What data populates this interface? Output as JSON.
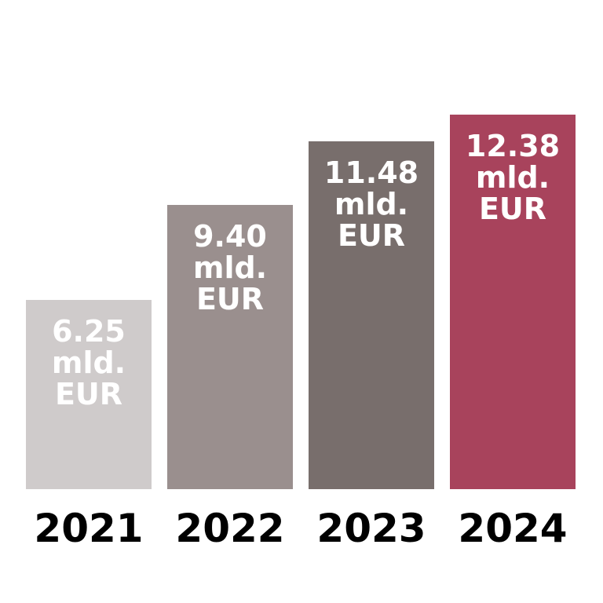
{
  "chart_data": {
    "type": "bar",
    "categories": [
      "2021",
      "2022",
      "2023",
      "2024"
    ],
    "series": [
      {
        "values": [
          6.25,
          9.4,
          11.48,
          12.38
        ],
        "value_labels": [
          "6.25 mld. EUR",
          "9.40 mld. EUR",
          "11.48 mld. EUR",
          "12.38 mld. EUR"
        ],
        "colors": [
          "#cfcbcb",
          "#9a8f8e",
          "#786e6c",
          "#a8435c"
        ]
      }
    ]
  }
}
